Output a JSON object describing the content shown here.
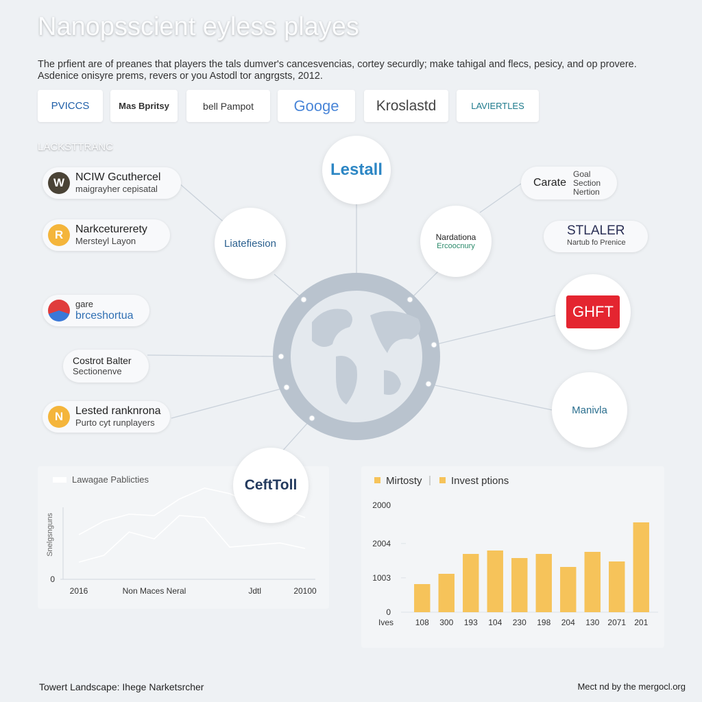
{
  "header": {
    "title": "Nanopsscient eyless playes",
    "subtitle": "The prfient are of preanes that players the tals dumver's cancesvencias, cortey securdly; make tahigal and flecs, pesicy, and op provere. Asdenice onisyre prems, revers or you Astodl tor angrgsts, 2012."
  },
  "logos": [
    "PVICCS",
    "Mas Bpritsy",
    "bell Pampot",
    "Googe",
    "Kroslastd",
    "LAVIERTLES"
  ],
  "section_label": "LACKSTTRANC",
  "left_items": [
    {
      "badge": "W",
      "title": "NCIW Gcuthercel",
      "subtitle": "maigrayher cepisatal"
    },
    {
      "badge": "R",
      "title": "Narkceturerety",
      "subtitle": "Mersteyl Layon"
    },
    {
      "title": "gare",
      "subtitle": "brceshortua"
    },
    {
      "title": "Costrot Balter",
      "subtitle": "Sectionenve"
    },
    {
      "badge": "N",
      "title": "Lested ranknrona",
      "subtitle": "Purto cyt runplayers"
    }
  ],
  "nodes": [
    "Lestall",
    "Liatefiesion",
    "Nardationa",
    "Ercoocnury",
    "CeftToll",
    "GHFT",
    "Manivla"
  ],
  "right_items": [
    {
      "title": "Carate",
      "subtitle": "Goal Section Nertion"
    },
    {
      "title": "STLALER",
      "subtitle": "Nartub fo Prenice"
    }
  ],
  "chart_data": [
    {
      "type": "line",
      "y_label": "Snelgsnguns",
      "categories": [
        "2016",
        null,
        null,
        "Non Maces Neral",
        null,
        null,
        null,
        "Jdtl",
        null,
        "20100"
      ],
      "series": [
        {
          "name": "Lawagae Pablicties",
          "color": "#ffffff",
          "values": [
            6.5,
            8.5,
            9.5,
            9.3,
            11.7,
            13.3,
            12.5,
            10.9,
            10.3,
            9.0
          ]
        },
        {
          "color": "#ffffff",
          "values": [
            2.5,
            3.5,
            6.9,
            5.9,
            9.3,
            9.0,
            4.7,
            5.0,
            5.3,
            4.5
          ]
        }
      ],
      "ylim": [
        0,
        14
      ],
      "yticks": [
        0
      ]
    },
    {
      "type": "bar",
      "legend": [
        "Mirtosty",
        "Invest ptions"
      ],
      "x_label": "Ives",
      "top_label": "2000",
      "categories": [
        "108",
        "300",
        "193",
        "104",
        "230",
        "198",
        "204",
        "130",
        "2071",
        "201"
      ],
      "values": [
        820,
        1120,
        1700,
        1800,
        1580,
        1700,
        1320,
        1760,
        1480,
        2620
      ],
      "color": "#f6c35a",
      "ylim": [
        0,
        3300
      ],
      "yticks": [
        0,
        1003,
        2004
      ]
    }
  ],
  "footer": {
    "left": "Towert Landscape: Ihege Narketsrcher",
    "right": "Mect nd by the mergocl.org"
  }
}
